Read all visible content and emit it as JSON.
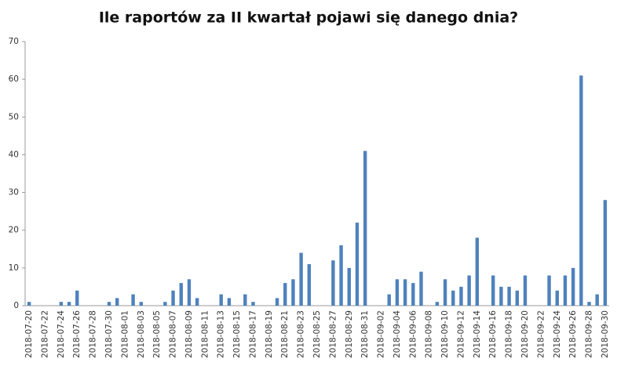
{
  "chart_data": {
    "type": "bar",
    "title": "Ile raportów za II kwartał pojawi się danego dnia?",
    "categories": [
      "2018-07-20",
      null,
      "2018-07-22",
      null,
      "2018-07-24",
      null,
      "2018-07-26",
      null,
      "2018-07-28",
      null,
      "2018-07-30",
      null,
      "2018-08-01",
      null,
      "2018-08-03",
      null,
      "2018-08-05",
      null,
      "2018-08-07",
      null,
      "2018-08-09",
      null,
      "2018-08-11",
      null,
      "2018-08-13",
      null,
      "2018-08-15",
      null,
      "2018-08-17",
      null,
      "2018-08-19",
      null,
      "2018-08-21",
      null,
      "2018-08-23",
      null,
      "2018-08-25",
      null,
      "2018-08-27",
      null,
      "2018-08-29",
      null,
      "2018-08-31",
      null,
      "2018-09-02",
      null,
      "2018-09-04",
      null,
      "2018-09-06",
      null,
      "2018-09-08",
      null,
      "2018-09-10",
      null,
      "2018-09-12",
      null,
      "2018-09-14",
      null,
      "2018-09-16",
      null,
      "2018-09-18",
      null,
      "2018-09-20",
      null,
      "2018-09-22",
      null,
      "2018-09-24",
      null,
      "2018-09-26",
      null,
      "2018-09-28",
      null,
      "2018-09-30"
    ],
    "values": [
      1,
      0,
      0,
      0,
      1,
      1,
      4,
      0,
      0,
      0,
      1,
      2,
      0,
      3,
      1,
      0,
      0,
      1,
      4,
      6,
      7,
      2,
      0,
      0,
      3,
      2,
      0,
      3,
      1,
      0,
      0,
      2,
      6,
      7,
      14,
      11,
      0,
      0,
      12,
      16,
      10,
      22,
      41,
      0,
      0,
      3,
      7,
      7,
      6,
      9,
      0,
      1,
      7,
      4,
      5,
      8,
      18,
      0,
      8,
      5,
      5,
      4,
      8,
      0,
      0,
      8,
      4,
      8,
      10,
      61,
      1,
      3,
      28
    ],
    "color": "#4f81bd",
    "ylim": [
      0,
      70
    ],
    "yticks": [
      0,
      10,
      20,
      30,
      40,
      50,
      60,
      70
    ],
    "grid": false
  }
}
